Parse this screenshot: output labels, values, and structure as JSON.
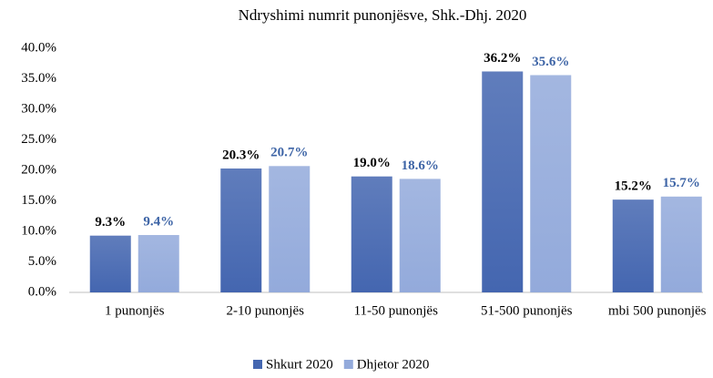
{
  "chart_data": {
    "type": "bar",
    "title": "Ndryshimi numrit punonjësve, Shk.-Dhj. 2020",
    "categories": [
      "1 punonjës",
      "2-10 punonjës",
      "11-50 punonjës",
      "51-500 punonjës",
      "mbi 500 punonjës"
    ],
    "series": [
      {
        "name": "Shkurt 2020",
        "color": "#4466b0",
        "values": [
          9.3,
          20.3,
          19.0,
          36.2,
          15.2
        ],
        "value_labels": [
          "9.3%",
          "20.3%",
          "19.0%",
          "36.2%",
          "15.2%"
        ]
      },
      {
        "name": "Dhjetor 2020",
        "color": "#93aadb",
        "values": [
          9.4,
          20.7,
          18.6,
          35.6,
          15.7
        ],
        "value_labels": [
          "9.4%",
          "20.7%",
          "18.6%",
          "35.6%",
          "15.7%"
        ]
      }
    ],
    "ylim": [
      0,
      40
    ],
    "yticks": [
      {
        "value": 0,
        "label": "0.0%"
      },
      {
        "value": 5,
        "label": "5.0%"
      },
      {
        "value": 10,
        "label": "10.0%"
      },
      {
        "value": 15,
        "label": "15.0%"
      },
      {
        "value": 20,
        "label": "20.0%"
      },
      {
        "value": 25,
        "label": "25.0%"
      },
      {
        "value": 30,
        "label": "30.0%"
      },
      {
        "value": 35,
        "label": "35.0%"
      },
      {
        "value": 40,
        "label": "40.0%"
      }
    ],
    "grid": false,
    "legend": "bottom"
  }
}
